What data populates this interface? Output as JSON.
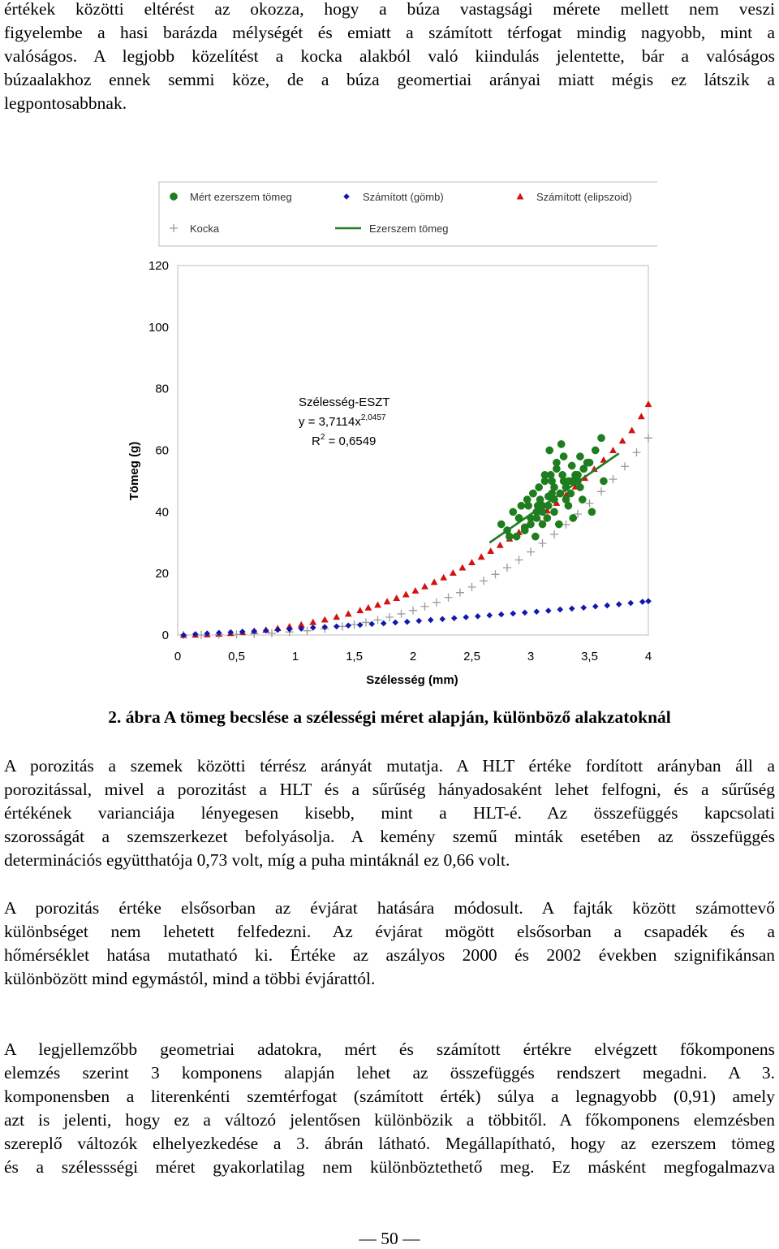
{
  "intro": {
    "lines": [
      "értékek közötti eltérést az okozza, hogy a búza vastagsági mérete mellett nem veszi",
      "figyelembe a hasi barázda mélységét és emiatt a számított térfogat mindig nagyobb, mint a",
      "valóságos. A legjobb közelítést a kocka alakból való kiindulás jelentette, bár a valóságos",
      "búzaalakhoz ennek semmi köze, de a búza geomertiai arányai miatt mégis ez látszik a",
      "legpontosabbnak."
    ]
  },
  "chart_data": {
    "type": "scatter",
    "xlabel": "Szélesség (mm)",
    "ylabel": "Tömeg (g)",
    "xlim": [
      0,
      4
    ],
    "ylim": [
      0,
      120
    ],
    "x_ticks": [
      "0",
      "0,5",
      "1",
      "1,5",
      "2",
      "2,5",
      "3",
      "3,5",
      "4"
    ],
    "y_ticks": [
      "0",
      "20",
      "40",
      "60",
      "80",
      "100",
      "120"
    ],
    "grid": false,
    "legend_position": "top",
    "legend": [
      {
        "label": "Mért ezerszem tömeg",
        "marker": "circle",
        "color": "#1e7d1e"
      },
      {
        "label": "Számított (gömb)",
        "marker": "diamond",
        "color": "#1018b0"
      },
      {
        "label": "Számított (elipszoid)",
        "marker": "triangle",
        "color": "#d41010"
      },
      {
        "label": "Kocka",
        "marker": "plus",
        "color": "#9a9a9a"
      },
      {
        "label": "Ezerszem tömeg",
        "marker": "line",
        "color": "#1e7d1e"
      }
    ],
    "annotation": {
      "line1": "Szélesség-ESZT",
      "line2_base": "y = 3,7114x",
      "line2_exp": "2,0457",
      "line3_base": "R",
      "line3_exp": "2",
      "line3_rest": " = 0,6549"
    },
    "series": [
      {
        "name": "Számított (elipszoid)",
        "marker": "triangle",
        "color": "#d41010",
        "x": [
          0.05,
          0.15,
          0.25,
          0.35,
          0.45,
          0.55,
          0.65,
          0.75,
          0.85,
          0.95,
          1.05,
          1.15,
          1.25,
          1.35,
          1.45,
          1.55,
          1.62,
          1.7,
          1.78,
          1.86,
          1.94,
          2.02,
          2.1,
          2.18,
          2.26,
          2.34,
          2.42,
          2.5,
          2.58,
          2.66,
          2.74,
          2.82,
          2.9,
          2.98,
          3.06,
          3.14,
          3.22,
          3.3,
          3.38,
          3.46,
          3.54,
          3.62,
          3.7,
          3.78,
          3.86,
          3.94,
          4.0
        ],
        "y": [
          0.0,
          0.1,
          0.2,
          0.4,
          0.6,
          0.9,
          1.3,
          1.7,
          2.2,
          2.8,
          3.4,
          4.2,
          5.0,
          5.9,
          6.9,
          8.0,
          8.9,
          9.8,
          10.9,
          12.0,
          13.2,
          14.4,
          15.8,
          17.2,
          18.7,
          20.2,
          21.9,
          23.6,
          25.4,
          27.3,
          29.2,
          31.3,
          33.4,
          35.7,
          38.0,
          40.4,
          42.9,
          45.5,
          48.2,
          51.0,
          53.9,
          56.9,
          60.0,
          63.1,
          66.5,
          71.0,
          75.0
        ]
      },
      {
        "name": "Kocka",
        "marker": "plus",
        "color": "#9a9a9a",
        "x": [
          0.05,
          0.2,
          0.35,
          0.5,
          0.65,
          0.8,
          0.95,
          1.1,
          1.25,
          1.4,
          1.5,
          1.6,
          1.7,
          1.8,
          1.9,
          2.0,
          2.1,
          2.2,
          2.3,
          2.4,
          2.5,
          2.6,
          2.7,
          2.8,
          2.9,
          3.0,
          3.1,
          3.2,
          3.3,
          3.4,
          3.5,
          3.6,
          3.7,
          3.8,
          3.9,
          4.0
        ],
        "y": [
          0.0,
          0.0,
          0.1,
          0.2,
          0.4,
          0.6,
          1.0,
          1.4,
          2.0,
          2.8,
          3.4,
          4.1,
          4.9,
          5.8,
          6.9,
          8.0,
          9.3,
          10.6,
          12.2,
          13.8,
          15.6,
          17.6,
          19.7,
          21.9,
          24.4,
          27.0,
          29.8,
          32.7,
          35.9,
          39.3,
          42.8,
          46.6,
          50.6,
          54.8,
          59.3,
          64.0
        ]
      },
      {
        "name": "Számított (gömb)",
        "marker": "diamond",
        "color": "#1018b0",
        "x": [
          0.05,
          0.15,
          0.25,
          0.35,
          0.45,
          0.55,
          0.65,
          0.75,
          0.85,
          0.95,
          1.05,
          1.15,
          1.25,
          1.35,
          1.45,
          1.55,
          1.65,
          1.75,
          1.85,
          1.95,
          2.05,
          2.15,
          2.25,
          2.35,
          2.45,
          2.55,
          2.65,
          2.75,
          2.85,
          2.95,
          3.05,
          3.15,
          3.25,
          3.35,
          3.45,
          3.55,
          3.65,
          3.75,
          3.85,
          3.95,
          4.0
        ],
        "y": [
          0.0,
          0.3,
          0.5,
          0.7,
          0.9,
          1.1,
          1.3,
          1.5,
          1.7,
          1.9,
          2.1,
          2.4,
          2.6,
          2.8,
          3.1,
          3.3,
          3.6,
          3.8,
          4.1,
          4.3,
          4.6,
          4.9,
          5.2,
          5.5,
          5.8,
          6.1,
          6.4,
          6.7,
          7.0,
          7.3,
          7.6,
          7.9,
          8.3,
          8.6,
          8.9,
          9.3,
          9.6,
          10.0,
          10.4,
          10.8,
          11.0
        ]
      },
      {
        "name": "Mért ezerszem tömeg",
        "marker": "circle",
        "color": "#1e7d1e",
        "x": [
          2.75,
          2.8,
          2.85,
          2.88,
          2.9,
          2.92,
          2.95,
          2.97,
          3.0,
          3.02,
          3.05,
          3.07,
          3.1,
          3.12,
          3.15,
          3.17,
          3.2,
          3.22,
          3.25,
          3.27,
          3.3,
          3.32,
          3.35,
          3.38,
          3.4,
          3.42,
          3.45,
          3.5,
          3.55,
          3.6,
          2.95,
          3.0,
          3.05,
          3.1,
          3.15,
          3.2,
          3.25,
          3.3,
          3.35,
          3.4,
          3.45,
          2.9,
          2.98,
          3.08,
          3.18,
          3.28,
          3.38,
          3.48,
          3.1,
          3.2,
          3.3,
          3.22,
          3.12,
          3.02,
          3.32,
          3.42,
          2.82,
          3.52,
          3.62,
          3.14,
          3.24,
          3.34,
          3.04,
          3.44,
          3.16,
          3.26,
          3.06,
          3.36,
          3.18,
          3.28
        ],
        "y": [
          36,
          34,
          40,
          32,
          38,
          42,
          35,
          44,
          38,
          46,
          40,
          48,
          42,
          50,
          45,
          52,
          48,
          54,
          46,
          52,
          48,
          50,
          55,
          52,
          50,
          58,
          54,
          56,
          60,
          64,
          34,
          36,
          38,
          40,
          42,
          44,
          46,
          48,
          50,
          52,
          54,
          38,
          42,
          44,
          46,
          50,
          52,
          56,
          36,
          40,
          44,
          56,
          52,
          46,
          42,
          48,
          32,
          40,
          50,
          38,
          36,
          46,
          32,
          44,
          60,
          62,
          42,
          38,
          50,
          58
        ]
      }
    ],
    "trendline": {
      "name": "Ezerszem tömeg",
      "color": "#1e7d1e",
      "x_start": 2.65,
      "x_end": 3.75,
      "y_start": 30,
      "y_end": 59
    }
  },
  "caption": "2. ábra A tömeg becslése a szélességi méret alapján, különböző alakzatoknál",
  "para1": {
    "lines": [
      "A porozitás a szemek közötti térrész arányát mutatja. A HLT értéke fordított arányban áll a",
      "porozitással, mivel a porozitást a HLT és a sűrűség hányadosaként lehet felfogni, és a sűrűség",
      "értékének varianciája lényegesen kisebb, mint a HLT-é. Az összefüggés kapcsolati",
      "szorosságát a szemszerkezet befolyásolja. A kemény szemű minták esetében az összefüggés",
      "determinációs együtthatója 0,73 volt, míg a puha mintáknál ez 0,66 volt."
    ]
  },
  "para2": {
    "lines": [
      "A porozitás értéke elsősorban az évjárat hatására módosult. A fajták között számottevő",
      "különbséget nem lehetett felfedezni. Az évjárat mögött elsősorban a csapadék és a",
      "hőmérséklet hatása mutatható ki. Értéke az aszályos 2000 és 2002 években szignifikánsan",
      "különbözött mind egymástól, mind a többi évjárattól."
    ]
  },
  "para3": {
    "lines": [
      "A legjellemzőbb geometriai adatokra, mért és számított értékre elvégzett főkomponens",
      "elemzés szerint 3 komponens alapján lehet az összefüggés rendszert megadni. A 3.",
      "komponensben a literenkénti szemtérfogat (számított érték) súlya a legnagyobb (0,91) amely",
      "azt is jelenti, hogy ez a változó jelentősen különbözik a többitől. A főkomponens elemzésben",
      "szereplő változók elhelyezkedése a 3. ábrán látható. Megállapítható, hogy az ezerszem tömeg",
      "és a szélessségi méret gyakorlatilag nem különböztethető meg. Ez másként megfogalmazva"
    ]
  },
  "page_number": "— 50 —"
}
